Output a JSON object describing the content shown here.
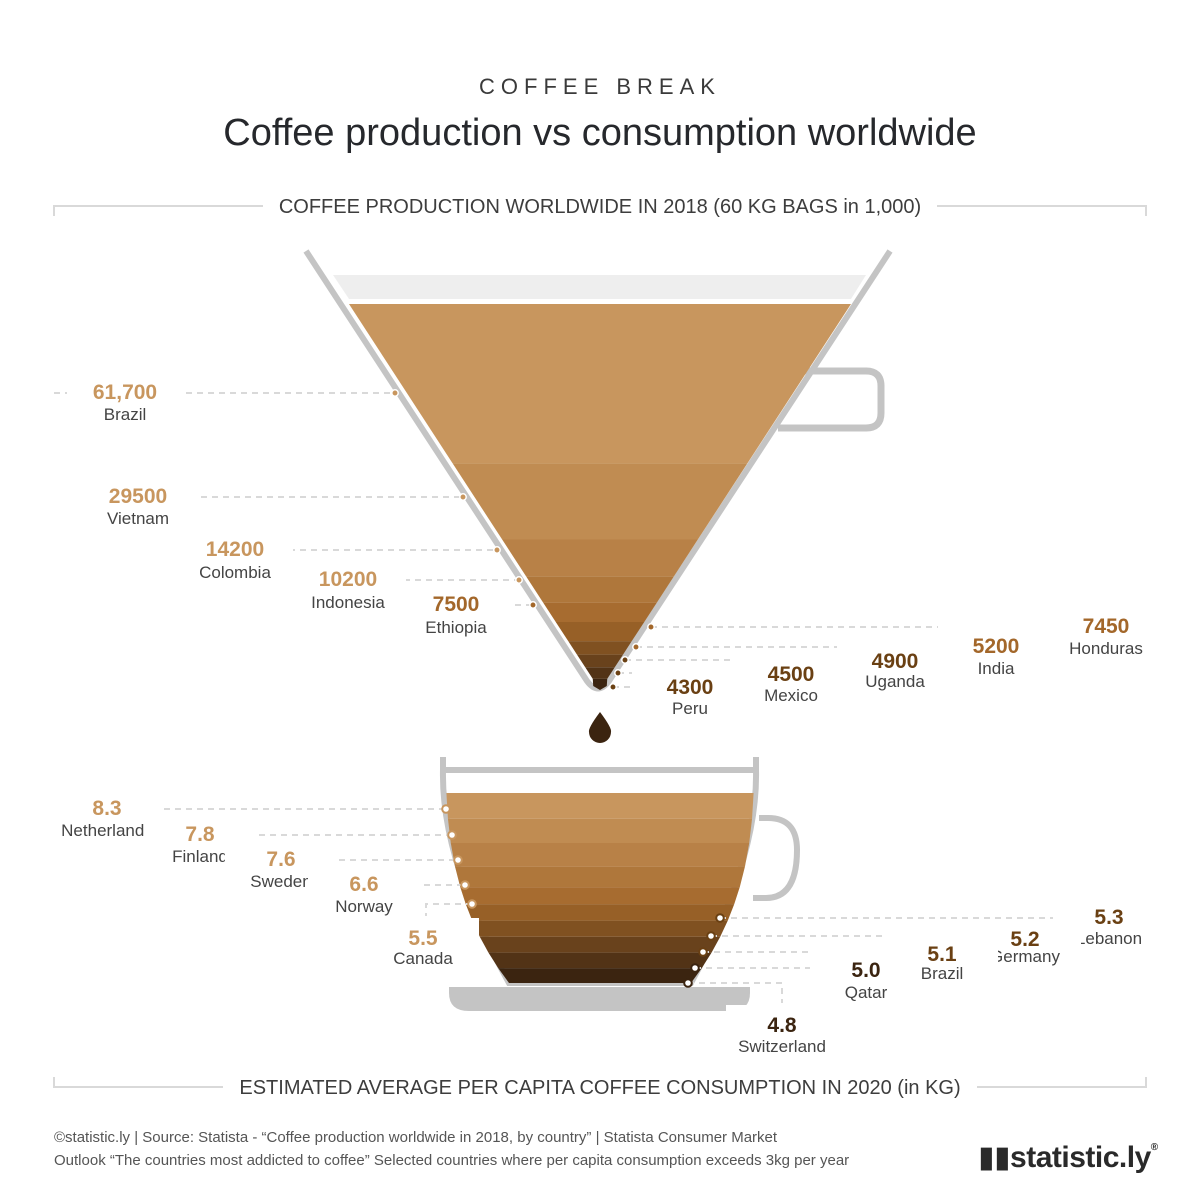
{
  "header": {
    "kicker": "COFFEE BREAK",
    "title": "Coffee production vs consumption worldwide"
  },
  "sections": {
    "production_title": "COFFEE PRODUCTION WORLDWIDE IN 2018 (60 KG BAGS in 1,000)",
    "consumption_title": "ESTIMATED AVERAGE PER CAPITA COFFEE CONSUMPTION IN 2020 (in KG)"
  },
  "footer": {
    "source_line1": "©statistic.ly | Source: Statista - “Coffee production worldwide in 2018, by country” | Statista Consumer Market",
    "source_line2": "Outlook “The countries most addicted to coffee” Selected countries where per capita consumption exceeds 3kg per year",
    "logo": "statistic.ly",
    "logo_mark": "®"
  },
  "colors": {
    "light": "#c8965e",
    "mid": "#a3672a",
    "dark": "#6a4013",
    "darkest": "#3b2410",
    "outline": "#c4c4c4",
    "guide": "#d9d9d9"
  },
  "chart_data": [
    {
      "type": "bar",
      "title": "COFFEE PRODUCTION WORLDWIDE IN 2018 (60 KG BAGS in 1,000)",
      "categories": [
        "Brazil",
        "Vietnam",
        "Colombia",
        "Indonesia",
        "Ethiopia",
        "Honduras",
        "India",
        "Uganda",
        "Mexico",
        "Peru"
      ],
      "value_labels": [
        "61,700",
        "29500",
        "14200",
        "10200",
        "7500",
        "7450",
        "5200",
        "4900",
        "4500",
        "4300"
      ],
      "values": [
        61700,
        29500,
        14200,
        10200,
        7500,
        7450,
        5200,
        4900,
        4500,
        4300
      ]
    },
    {
      "type": "bar",
      "title": "ESTIMATED AVERAGE PER CAPITA COFFEE CONSUMPTION IN 2020 (in KG)",
      "categories": [
        "Netherlands",
        "Finland",
        "Sweden",
        "Norway",
        "Canada",
        "Lebanon",
        "Germany",
        "Brazil",
        "Qatar",
        "Switzerland"
      ],
      "value_labels": [
        "8.3",
        "7.8",
        "7.6",
        "6.6",
        "5.5",
        "5.3",
        "5.2",
        "5.1",
        "5.0",
        "4.8"
      ],
      "values": [
        8.3,
        7.8,
        7.6,
        6.6,
        5.5,
        5.3,
        5.2,
        5.1,
        5.0,
        4.8
      ]
    }
  ]
}
